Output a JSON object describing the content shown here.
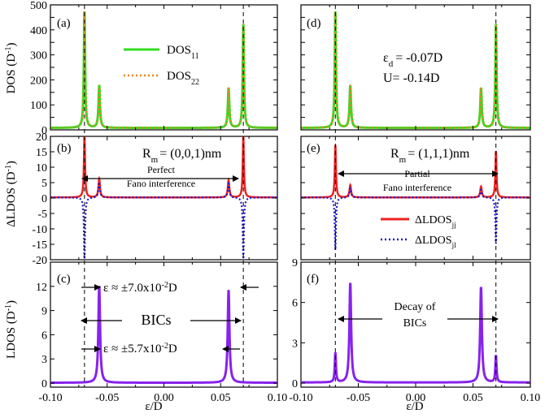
{
  "figure": {
    "x_axis_label_left": "ε/D",
    "x_axis_label_right": "ε/D",
    "colors": {
      "dos11": "#33dd22",
      "dos22": "#e8821e",
      "ldos_jj": "#ee2222",
      "ldos_jl": "#1a1acc",
      "ldos": "#8822ee",
      "axis": "#000000"
    }
  },
  "chart_data": [
    {
      "id": "a",
      "type": "line",
      "panel_label": "(a)",
      "ylabel_main": "DOS",
      "ylabel_unit": "(D",
      "ylabel_sup": "-1",
      "ylabel_end": ")",
      "xlim": [
        -0.1,
        0.1
      ],
      "ylim": [
        0,
        500
      ],
      "yticks": [
        0,
        50,
        100,
        150,
        200,
        250,
        300,
        350,
        400,
        450,
        500
      ],
      "ytick_labels": [
        "0",
        "",
        "100",
        "",
        "200",
        "",
        "300",
        "",
        "400",
        "",
        "500"
      ],
      "peaks": [
        {
          "x": -0.07,
          "height": 465,
          "width": 0.00065
        },
        {
          "x": -0.057,
          "height": 170,
          "width": 0.00075
        },
        {
          "x": 0.057,
          "height": 160,
          "width": 0.00075
        },
        {
          "x": 0.07,
          "height": 415,
          "width": 0.00065
        }
      ],
      "baseline": 8,
      "series": [
        {
          "name": "DOS",
          "sub": "11",
          "style": "solid",
          "color": "#33dd22"
        },
        {
          "name": "DOS",
          "sub": "22",
          "style": "dotted",
          "color": "#e8821e"
        }
      ],
      "annotations": []
    },
    {
      "id": "b",
      "type": "line",
      "panel_label": "(b)",
      "ylabel_main": "ΔLDOS",
      "ylabel_unit": "(D",
      "ylabel_sup": "-1",
      "ylabel_end": ")",
      "xlim": [
        -0.1,
        0.1
      ],
      "ylim": [
        -20,
        20
      ],
      "yticks": [
        -20,
        -15,
        -10,
        -5,
        0,
        5,
        10,
        15,
        20
      ],
      "ytick_labels": [
        "-20",
        "-15",
        "-10",
        "-5",
        "0",
        "5",
        "10",
        "15",
        "20"
      ],
      "rm_label": "R",
      "rm_sub": "m",
      "rm_value": "= (0,0,1)nm",
      "text_line1": "Perfect",
      "text_line2": "Fano interference",
      "jj_peaks": [
        {
          "x": -0.07,
          "height": 20,
          "width": 0.0006
        },
        {
          "x": -0.057,
          "height": 6,
          "width": 0.0008
        },
        {
          "x": 0.057,
          "height": 5.5,
          "width": 0.0008
        },
        {
          "x": 0.07,
          "height": 20,
          "width": 0.0006
        }
      ],
      "jl_peaks": [
        {
          "x": -0.07,
          "height": -20,
          "width": 0.0006
        },
        {
          "x": -0.057,
          "height": 5,
          "width": 0.0008
        },
        {
          "x": 0.057,
          "height": 4.5,
          "width": 0.0008
        },
        {
          "x": 0.07,
          "height": -20,
          "width": 0.0006
        }
      ],
      "baseline": 0.2
    },
    {
      "id": "c",
      "type": "line",
      "panel_label": "(c)",
      "ylabel_main": "LDOS",
      "ylabel_unit": "(D",
      "ylabel_sup": "-1",
      "ylabel_end": ")",
      "xlim": [
        -0.1,
        0.1
      ],
      "ylim": [
        -0.5,
        15
      ],
      "yticks": [
        0,
        3,
        6,
        9,
        12
      ],
      "ytick_labels": [
        "0",
        "3",
        "6",
        "9",
        "12"
      ],
      "peaks": [
        {
          "x": -0.057,
          "height": 12,
          "width": 0.0009
        },
        {
          "x": 0.057,
          "height": 11.5,
          "width": 0.0009
        }
      ],
      "baseline": 0.05,
      "text_top": "ε ≈ ±7.0x10",
      "text_top_sup": "-2",
      "text_top_end": "D",
      "text_mid": "BICs",
      "text_bottom": "ε ≈ ±5.7x10",
      "text_bottom_sup": "-2",
      "text_bottom_end": "D",
      "xtick_labels": [
        "-0.10",
        "-0.05",
        "0.00",
        "0.05",
        "0.10"
      ]
    },
    {
      "id": "d",
      "type": "line",
      "panel_label": "(d)",
      "xlim": [
        -0.1,
        0.1
      ],
      "ylim": [
        0,
        500
      ],
      "yticks": [
        0,
        50,
        100,
        150,
        200,
        250,
        300,
        350,
        400,
        450,
        500
      ],
      "peaks": [
        {
          "x": -0.07,
          "height": 465,
          "width": 0.00065
        },
        {
          "x": -0.057,
          "height": 170,
          "width": 0.00075
        },
        {
          "x": 0.057,
          "height": 160,
          "width": 0.00075
        },
        {
          "x": 0.07,
          "height": 415,
          "width": 0.00065
        }
      ],
      "baseline": 8,
      "param1_symbol": "ε",
      "param1_sub": "d",
      "param1_value": "= -0.07D",
      "param2": "U= -0.14D"
    },
    {
      "id": "e",
      "type": "line",
      "panel_label": "(e)",
      "xlim": [
        -0.1,
        0.1
      ],
      "ylim": [
        -20,
        20
      ],
      "yticks": [
        -20,
        -15,
        -10,
        -5,
        0,
        5,
        10,
        15,
        20
      ],
      "rm_label": "R",
      "rm_sub": "m",
      "rm_value": "= (1,1,1)nm",
      "text_line1": "Partial",
      "text_line2": "Fano interference",
      "jj_peaks": [
        {
          "x": -0.07,
          "height": 17,
          "width": 0.0006
        },
        {
          "x": -0.057,
          "height": 4,
          "width": 0.0008
        },
        {
          "x": 0.057,
          "height": 3.5,
          "width": 0.0008
        },
        {
          "x": 0.07,
          "height": 15,
          "width": 0.0006
        }
      ],
      "jl_peaks": [
        {
          "x": -0.07,
          "height": -17,
          "width": 0.0006
        },
        {
          "x": -0.057,
          "height": 3,
          "width": 0.0008
        },
        {
          "x": 0.057,
          "height": 2.5,
          "width": 0.0008
        },
        {
          "x": 0.07,
          "height": -15,
          "width": 0.0006
        }
      ],
      "baseline": 0.2,
      "series": [
        {
          "name": "ΔLDOS",
          "sub": "jj",
          "style": "solid",
          "color": "#ee2222"
        },
        {
          "name": "ΔLDOS",
          "sub": "jl",
          "style": "dotted",
          "color": "#1a1acc"
        }
      ]
    },
    {
      "id": "f",
      "type": "line",
      "panel_label": "(f)",
      "xlim": [
        -0.1,
        0.1
      ],
      "ylim": [
        -0.3,
        9
      ],
      "yticks": [
        0,
        3,
        6,
        9
      ],
      "ytick_labels": [
        "0",
        "3",
        "6",
        "9"
      ],
      "peaks": [
        {
          "x": -0.07,
          "height": 2.2,
          "width": 0.0006
        },
        {
          "x": -0.057,
          "height": 7.4,
          "width": 0.0009
        },
        {
          "x": 0.057,
          "height": 7.1,
          "width": 0.0009
        },
        {
          "x": 0.07,
          "height": 2.0,
          "width": 0.0006
        }
      ],
      "baseline": 0.05,
      "text_line1": "Decay of",
      "text_line2": "BICs",
      "xtick_labels": [
        "-0.10",
        "-0.05",
        "0.00",
        "0.05",
        "0.10"
      ]
    }
  ]
}
